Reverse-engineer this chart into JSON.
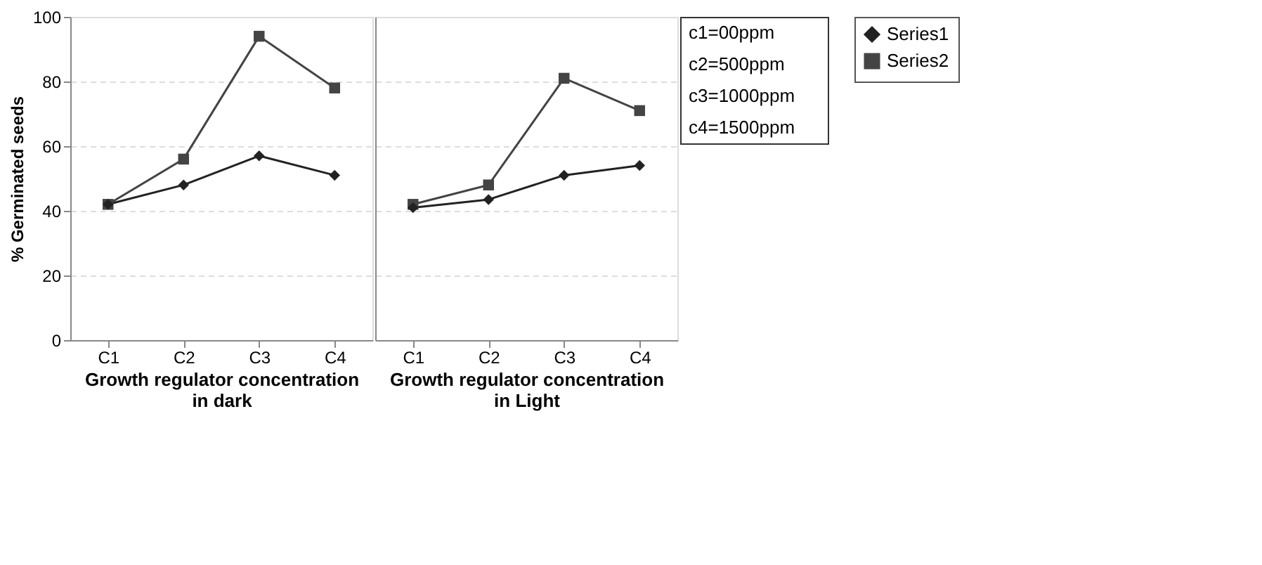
{
  "chart_data": [
    {
      "type": "line",
      "categories": [
        "C1",
        "C2",
        "C3",
        "C4"
      ],
      "ylabel": "% Germinated seeds",
      "xlabel": "Growth regulator concentration in dark",
      "ylim": [
        0,
        100
      ],
      "yticks": [
        0,
        20,
        40,
        60,
        80,
        100
      ],
      "grid": "y",
      "legend": false,
      "series": [
        {
          "color": "#222222",
          "marker": "diamond",
          "values": [
            42,
            48,
            57,
            51
          ]
        },
        {
          "color": "#444444",
          "marker": "square",
          "values": [
            42,
            56,
            94,
            78
          ]
        }
      ]
    },
    {
      "type": "line",
      "categories": [
        "C1",
        "C2",
        "C3",
        "C4"
      ],
      "xlabel": "Growth regulator concentration in Light",
      "ylim": [
        0,
        100
      ],
      "yticks": [
        0,
        20,
        40,
        60,
        80,
        100
      ],
      "grid": "y",
      "legend": "right",
      "tick_labels": "x",
      "series": [
        {
          "name": "Series1",
          "color": "#222222",
          "marker": "diamond",
          "values": [
            41,
            43.5,
            51,
            54
          ]
        },
        {
          "name": "Series2",
          "color": "#444444",
          "marker": "square",
          "values": [
            42,
            48,
            81,
            71
          ]
        }
      ],
      "annotations": [
        "c1=00ppm",
        "c2=500ppm",
        "c3=1000ppm",
        "c4=1500ppm"
      ]
    }
  ]
}
